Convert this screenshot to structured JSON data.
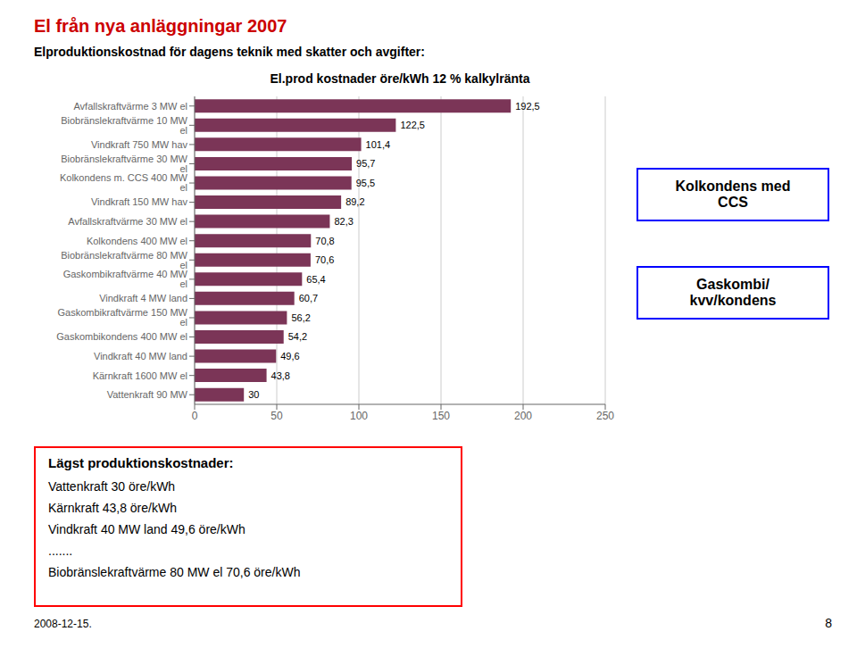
{
  "chart_data": {
    "type": "bar",
    "orientation": "horizontal",
    "title": "El.prod kostnader öre/kWh 12 % kalkylränta",
    "categories": [
      "Avfallskraftvärme 3 MW el",
      "Biobränslekraftvärme 10 MW el",
      "Vindkraft 750 MW hav",
      "Biobränslekraftvärme 30 MW el",
      "Kolkondens m. CCS 400 MW el",
      "Vindkraft 150 MW hav",
      "Avfallskraftvärme 30 MW el",
      "Kolkondens  400 MW el",
      "Biobränslekraftvärme 80 MW el",
      "Gaskombikraftvärme 40 MW el",
      "Vindkraft 4 MW land",
      "Gaskombikraftvärme 150 MW el",
      "Gaskombikondens 400 MW el",
      "Vindkraft 40 MW land",
      "Kärnkraft 1600 MW el",
      "Vattenkraft 90 MW"
    ],
    "values": [
      192.5,
      122.5,
      101.4,
      95.7,
      95.5,
      89.2,
      82.3,
      70.8,
      70.6,
      65.4,
      60.7,
      56.2,
      54.2,
      49.6,
      43.8,
      30.0
    ],
    "value_labels": [
      "192,5",
      "122,5",
      "101,4",
      "95,7",
      "95,5",
      "89,2",
      "82,3",
      "70,8",
      "70,6",
      "65,4",
      "60,7",
      "56,2",
      "54,2",
      "49,6",
      "43,8",
      "30"
    ],
    "data_labels": true,
    "color": "#7B3557",
    "xlim": [
      0,
      250
    ],
    "xticks": [
      0,
      50,
      100,
      150,
      200,
      250
    ],
    "grid": true,
    "annotations": [
      "El från nya anläggningar 2007",
      "Elproduktionskostnad för dagens teknik med skatter och avgifter:",
      "Kolkondens med\nCCS",
      "Gaskombi/\nkvv/kondens",
      "Lägst produktionskostnader:",
      "Vattenkraft 30 öre/kWh",
      "Kärnkraft 43,8 öre/kWh",
      "Vindkraft 40 MW land 49,6 öre/kWh",
      ".......",
      "Biobränslekraftvärme 80 MW el 70,6 öre/kWh",
      "2008-12-15.",
      "8"
    ]
  }
}
